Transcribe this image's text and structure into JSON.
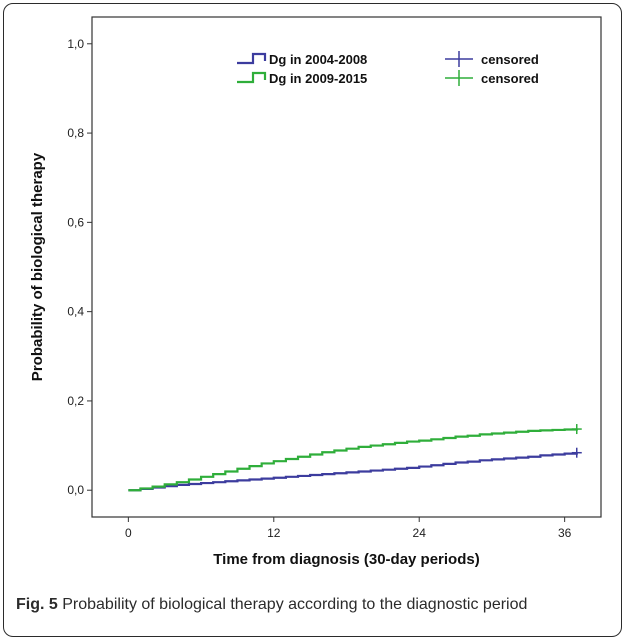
{
  "caption": {
    "label": "Fig. 5",
    "text": "Probability of biological therapy according to the diagnostic period"
  },
  "chart_data": {
    "type": "line",
    "xlabel": "Time from diagnosis (30-day periods)",
    "ylabel": "Probability of biological therapy",
    "xlim": [
      -3,
      39
    ],
    "ylim": [
      -0.06,
      1.06
    ],
    "xticks": [
      0,
      12,
      24,
      36
    ],
    "xtick_labels": [
      "0",
      "12",
      "24",
      "36"
    ],
    "yticks": [
      0.0,
      0.2,
      0.4,
      0.6,
      0.8,
      1.0
    ],
    "ytick_labels": [
      "0,0",
      "0,2",
      "0,4",
      "0,6",
      "0,8",
      "1,0"
    ],
    "grid": false,
    "legend_position": "top-center",
    "censored_label": "censored",
    "series": [
      {
        "name": "Dg in 2004-2008",
        "color": "#3c3c9e",
        "x": [
          0,
          1,
          2,
          3,
          4,
          5,
          6,
          7,
          8,
          9,
          10,
          11,
          12,
          13,
          14,
          15,
          16,
          17,
          18,
          19,
          20,
          21,
          22,
          23,
          24,
          25,
          26,
          27,
          28,
          29,
          30,
          31,
          32,
          33,
          34,
          35,
          36,
          37
        ],
        "y": [
          0.0,
          0.003,
          0.006,
          0.009,
          0.012,
          0.014,
          0.016,
          0.018,
          0.02,
          0.022,
          0.024,
          0.026,
          0.028,
          0.03,
          0.032,
          0.034,
          0.036,
          0.038,
          0.04,
          0.042,
          0.044,
          0.046,
          0.048,
          0.05,
          0.053,
          0.056,
          0.059,
          0.062,
          0.064,
          0.067,
          0.069,
          0.071,
          0.073,
          0.075,
          0.078,
          0.08,
          0.082,
          0.084
        ],
        "censored_x": 37
      },
      {
        "name": "Dg in 2009-2015",
        "color": "#2fae3a",
        "x": [
          0,
          1,
          2,
          3,
          4,
          5,
          6,
          7,
          8,
          9,
          10,
          11,
          12,
          13,
          14,
          15,
          16,
          17,
          18,
          19,
          20,
          21,
          22,
          23,
          24,
          25,
          26,
          27,
          28,
          29,
          30,
          31,
          32,
          33,
          34,
          35,
          36,
          37
        ],
        "y": [
          0.0,
          0.004,
          0.008,
          0.013,
          0.018,
          0.024,
          0.03,
          0.036,
          0.042,
          0.048,
          0.054,
          0.06,
          0.065,
          0.07,
          0.075,
          0.08,
          0.085,
          0.089,
          0.093,
          0.097,
          0.1,
          0.103,
          0.106,
          0.109,
          0.111,
          0.114,
          0.117,
          0.12,
          0.122,
          0.125,
          0.127,
          0.129,
          0.131,
          0.133,
          0.134,
          0.135,
          0.136,
          0.137
        ],
        "censored_x": 37
      }
    ]
  }
}
